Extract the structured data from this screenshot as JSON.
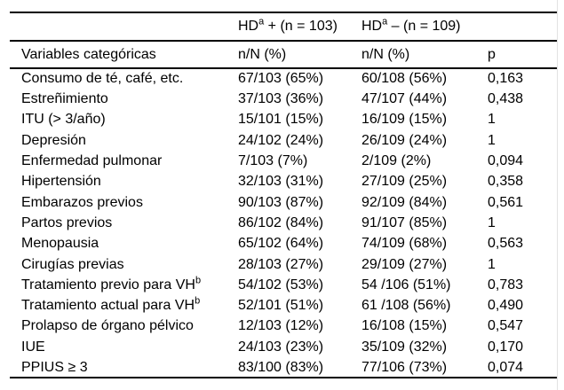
{
  "page": {
    "background_color": "#ffffff",
    "text_color": "#000000",
    "rule_color": "#000000"
  },
  "table": {
    "group_header": {
      "hd_positive": {
        "base": "HD",
        "sup": "a",
        "rest": " + (n = 103)"
      },
      "hd_negative": {
        "base": "HD",
        "sup": "a",
        "rest": " – (n = 109)"
      }
    },
    "column_header": {
      "variables": "Variables categóricas",
      "hd_positive": "n/N (%)",
      "hd_negative": "n/N (%)",
      "p": "p"
    },
    "rows": [
      {
        "variable": "Consumo de té, café, etc.",
        "hd_pos": "67/103 (65%)",
        "hd_neg": "60/108 (56%)",
        "p": "0,163"
      },
      {
        "variable": "Estreñimiento",
        "hd_pos": "37/103 (36%)",
        "hd_neg": "47/107 (44%)",
        "p": "0,438"
      },
      {
        "variable": "ITU (> 3/año)",
        "hd_pos": "15/101 (15%)",
        "hd_neg": "16/109 (15%)",
        "p": "1"
      },
      {
        "variable": "Depresión",
        "hd_pos": "24/102 (24%)",
        "hd_neg": "26/109 (24%)",
        "p": "1"
      },
      {
        "variable": "Enfermedad pulmonar",
        "hd_pos": "7/103 (7%)",
        "hd_neg": "2/109 (2%)",
        "p": "0,094"
      },
      {
        "variable": "Hipertensión",
        "hd_pos": "32/103 (31%)",
        "hd_neg": "27/109 (25%)",
        "p": "0,358"
      },
      {
        "variable": "Embarazos previos",
        "hd_pos": "90/103 (87%)",
        "hd_neg": "92/109 (84%)",
        "p": "0,561"
      },
      {
        "variable": "Partos previos",
        "hd_pos": "86/102 (84%)",
        "hd_neg": "91/107 (85%)",
        "p": "1"
      },
      {
        "variable": "Menopausia",
        "hd_pos": "65/102 (64%)",
        "hd_neg": "74/109 (68%)",
        "p": "0,563"
      },
      {
        "variable": "Cirugías previas",
        "hd_pos": "28/103 (27%)",
        "hd_neg": "29/109 (27%)",
        "p": "1"
      },
      {
        "variable": "Tratamiento previo para VH",
        "variable_sup": "b",
        "hd_pos": "54/102 (53%)",
        "hd_neg": "54 /106 (51%)",
        "p": "0,783"
      },
      {
        "variable": "Tratamiento actual para VH",
        "variable_sup": "b",
        "hd_pos": "52/101 (51%)",
        "hd_neg": "61 /108 (56%)",
        "p": "0,490"
      },
      {
        "variable": "Prolapso de órgano pélvico",
        "hd_pos": "12/103 (12%)",
        "hd_neg": "16/108 (15%)",
        "p": "0,547"
      },
      {
        "variable": "IUE",
        "hd_pos": "24/103 (23%)",
        "hd_neg": "35/109 (32%)",
        "p": "0,170"
      },
      {
        "variable": "PPIUS ≥ 3",
        "hd_pos": "83/100 (83%)",
        "hd_neg": "77/106 (73%)",
        "p": "0,074"
      }
    ]
  }
}
